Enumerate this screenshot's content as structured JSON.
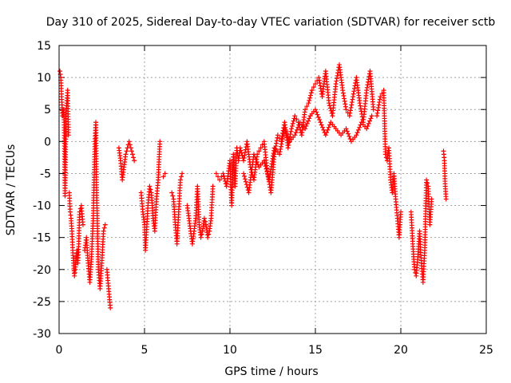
{
  "chart_data": {
    "type": "scatter",
    "title": "Day 310 of 2025, Sidereal Day-to-day VTEC variation (SDTVAR) for receiver sctb",
    "xlabel": "GPS time / hours",
    "ylabel": "SDTVAR / TECUs",
    "xlim": [
      0,
      25
    ],
    "ylim": [
      -30,
      15
    ],
    "xticks": [
      0,
      5,
      10,
      15,
      20,
      25
    ],
    "yticks": [
      -30,
      -25,
      -20,
      -15,
      -10,
      -5,
      0,
      5,
      10,
      15
    ],
    "grid": true,
    "marker": "+",
    "color": "#ff0000",
    "series": [
      {
        "name": "sctb",
        "segments": [
          {
            "x": [
              0.05,
              0.1,
              0.15,
              0.2,
              0.25,
              0.3,
              0.35,
              0.4,
              0.45,
              0.5,
              0.55
            ],
            "y": [
              11,
              10,
              7,
              4,
              5,
              3,
              -8.5,
              4,
              6,
              8,
              1
            ]
          },
          {
            "x": [
              0.6,
              0.65,
              0.7,
              0.75,
              0.8,
              0.85,
              0.9,
              0.95,
              1.0,
              1.05,
              1.1,
              1.15,
              1.2,
              1.3,
              1.4
            ],
            "y": [
              -8,
              -11,
              -12,
              -14,
              -17,
              -19,
              -21,
              -20,
              -18,
              -17,
              -19,
              -16,
              -11,
              -10,
              -13
            ]
          },
          {
            "x": [
              1.5,
              1.6,
              1.7,
              1.8,
              1.9,
              2.0,
              2.05,
              2.1,
              2.15,
              2.2,
              2.25,
              2.3,
              2.4,
              2.5,
              2.6,
              2.7
            ],
            "y": [
              -17,
              -15,
              -19,
              -22,
              -18,
              -12,
              -6,
              0,
              3,
              -8,
              -14,
              -20,
              -23,
              -19,
              -14,
              -13
            ]
          },
          {
            "x": [
              2.8,
              2.9,
              3.0
            ],
            "y": [
              -20,
              -23,
              -26
            ]
          },
          {
            "x": [
              3.5,
              3.6,
              3.7,
              3.8,
              3.9,
              4.0,
              4.1,
              4.2,
              4.3,
              4.4
            ],
            "y": [
              -1,
              -3,
              -6,
              -4,
              -2,
              -1,
              0,
              -1,
              -2,
              -3
            ]
          },
          {
            "x": [
              4.8,
              4.9,
              5.0,
              5.05,
              5.1,
              5.2,
              5.3,
              5.4,
              5.5,
              5.6,
              5.7,
              5.8,
              5.9
            ],
            "y": [
              -8,
              -11,
              -13,
              -17,
              -15,
              -10,
              -7,
              -8,
              -12,
              -14,
              -9,
              -6,
              0
            ]
          },
          {
            "x": [
              6.1,
              6.2
            ],
            "y": [
              -5.5,
              -5
            ]
          },
          {
            "x": [
              6.6,
              6.7,
              6.8,
              6.9,
              7.0,
              7.1,
              7.2
            ],
            "y": [
              -8,
              -9,
              -13,
              -16,
              -11,
              -6,
              -5
            ]
          },
          {
            "x": [
              7.5,
              7.6,
              7.7,
              7.8,
              7.9,
              8.0,
              8.1,
              8.2,
              8.3,
              8.4,
              8.5,
              8.6,
              8.7,
              8.8,
              8.9,
              9.0
            ],
            "y": [
              -10,
              -12,
              -14,
              -16,
              -14,
              -12,
              -7,
              -13,
              -15,
              -14,
              -12,
              -13,
              -15,
              -14,
              -12,
              -7
            ]
          },
          {
            "x": [
              9.2,
              9.4,
              9.6,
              9.8,
              10.0,
              10.1,
              10.2,
              10.3,
              10.4,
              10.5,
              10.6,
              10.8,
              11.0,
              11.2,
              11.4,
              11.6,
              11.8,
              12.0,
              12.2,
              12.4,
              12.6,
              12.8,
              13.0,
              13.2,
              13.4,
              13.6,
              13.8,
              14.0,
              14.2,
              14.4,
              14.6,
              14.8,
              15.0,
              15.2,
              15.4,
              15.6,
              15.8,
              16.0,
              16.2,
              16.4,
              16.6,
              16.8,
              17.0,
              17.2,
              17.4,
              17.6,
              17.8,
              18.0,
              18.2,
              18.4
            ],
            "y": [
              -5,
              -6,
              -5,
              -7,
              -3,
              -10,
              -2,
              -7,
              -1,
              -3,
              -1,
              -3,
              0,
              -4,
              -6,
              -2,
              -1,
              0,
              -5,
              -8,
              -2,
              1,
              0,
              3,
              -1,
              2,
              4,
              3,
              1,
              5,
              6,
              8,
              9,
              10,
              7,
              11,
              6,
              4,
              9,
              12,
              8,
              5,
              4,
              7,
              10,
              6,
              3,
              8,
              11,
              5
            ]
          },
          {
            "x": [
              10.8,
              11.1,
              11.4,
              11.7,
              12.0,
              12.3,
              12.6,
              12.9,
              13.2,
              13.5,
              13.8,
              14.1,
              14.4,
              14.7,
              15.0,
              15.3,
              15.6,
              15.9,
              16.2,
              16.5,
              16.8,
              17.1,
              17.4,
              17.7,
              18.0,
              18.3
            ],
            "y": [
              -5,
              -8,
              -2,
              -4,
              -3,
              -6,
              -1,
              -2,
              2,
              0,
              1,
              3,
              2,
              4,
              5,
              3,
              1,
              3,
              2,
              1,
              2,
              0,
              1,
              3,
              2,
              4
            ]
          },
          {
            "x": [
              18.6,
              18.8,
              19.0,
              19.1,
              19.2,
              19.3,
              19.4,
              19.5,
              19.6,
              19.7,
              19.8,
              19.9,
              20.0
            ],
            "y": [
              4,
              7,
              8,
              -2,
              -3,
              -1,
              -6,
              -8,
              -5,
              -9,
              -12,
              -15,
              -11
            ]
          },
          {
            "x": [
              20.6,
              20.7,
              20.8,
              20.9,
              21.0,
              21.1,
              21.2,
              21.3,
              21.4,
              21.5,
              21.6,
              21.7,
              21.8
            ],
            "y": [
              -11,
              -16,
              -20,
              -21,
              -18,
              -14,
              -19,
              -22,
              -17,
              -6,
              -7,
              -13,
              -9
            ]
          },
          {
            "x": [
              22.5,
              22.55,
              22.6,
              22.65
            ],
            "y": [
              -1.5,
              -3,
              -7,
              -9
            ]
          }
        ]
      }
    ]
  }
}
